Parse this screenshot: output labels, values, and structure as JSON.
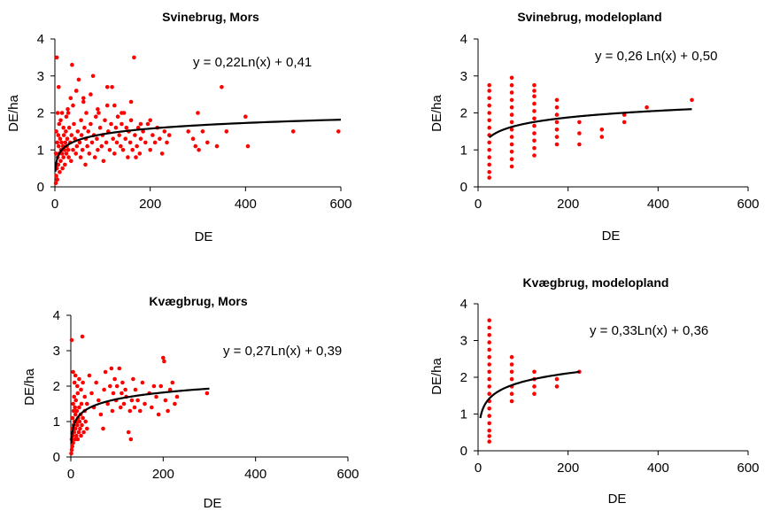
{
  "chart_data": [
    {
      "type": "scatter",
      "title": "Svinebrug, Mors",
      "xlabel": "DE",
      "ylabel": "DE/ha",
      "xlim": [
        0,
        600
      ],
      "ylim": [
        0,
        4
      ],
      "xticks": [
        "0",
        "200",
        "400",
        "600"
      ],
      "yticks": [
        "0",
        "1",
        "2",
        "3",
        "4"
      ],
      "equation": "y = 0,22Ln(x) + 0,41",
      "trend": {
        "a": 0.22,
        "b": 0.41,
        "xmin": 1,
        "xmax": 600
      },
      "point_color": "#ff0000",
      "points": [
        [
          2,
          0.1
        ],
        [
          3,
          0.3
        ],
        [
          4,
          0.5
        ],
        [
          5,
          0.2
        ],
        [
          6,
          0.8
        ],
        [
          7,
          0.6
        ],
        [
          8,
          1.1
        ],
        [
          9,
          0.9
        ],
        [
          10,
          0.4
        ],
        [
          11,
          1.3
        ],
        [
          12,
          0.7
        ],
        [
          13,
          1.0
        ],
        [
          14,
          1.2
        ],
        [
          15,
          0.9
        ],
        [
          16,
          0.5
        ],
        [
          17,
          1.1
        ],
        [
          18,
          0.8
        ],
        [
          19,
          1.4
        ],
        [
          20,
          1.0
        ],
        [
          21,
          0.6
        ],
        [
          22,
          1.2
        ],
        [
          23,
          1.5
        ],
        [
          24,
          0.9
        ],
        [
          25,
          1.1
        ],
        [
          26,
          1.3
        ],
        [
          27,
          2.1
        ],
        [
          28,
          1.0
        ],
        [
          29,
          0.8
        ],
        [
          30,
          1.6
        ],
        [
          32,
          1.2
        ],
        [
          34,
          0.7
        ],
        [
          35,
          1.4
        ],
        [
          36,
          3.3
        ],
        [
          38,
          1.0
        ],
        [
          40,
          1.7
        ],
        [
          42,
          1.3
        ],
        [
          44,
          0.9
        ],
        [
          45,
          2.6
        ],
        [
          46,
          1.1
        ],
        [
          48,
          1.5
        ],
        [
          50,
          2.9
        ],
        [
          52,
          1.2
        ],
        [
          54,
          0.8
        ],
        [
          55,
          1.8
        ],
        [
          56,
          1.4
        ],
        [
          58,
          1.0
        ],
        [
          60,
          2.3
        ],
        [
          62,
          1.6
        ],
        [
          64,
          0.6
        ],
        [
          65,
          1.3
        ],
        [
          66,
          2.0
        ],
        [
          68,
          1.1
        ],
        [
          70,
          1.5
        ],
        [
          72,
          0.9
        ],
        [
          75,
          1.7
        ],
        [
          78,
          1.2
        ],
        [
          80,
          3.0
        ],
        [
          82,
          1.4
        ],
        [
          84,
          0.8
        ],
        [
          86,
          1.9
        ],
        [
          88,
          1.3
        ],
        [
          90,
          1.0
        ],
        [
          92,
          2.0
        ],
        [
          95,
          1.6
        ],
        [
          98,
          1.1
        ],
        [
          100,
          1.4
        ],
        [
          102,
          0.7
        ],
        [
          105,
          1.8
        ],
        [
          108,
          1.2
        ],
        [
          110,
          2.2
        ],
        [
          112,
          1.5
        ],
        [
          115,
          1.0
        ],
        [
          118,
          1.7
        ],
        [
          120,
          2.7
        ],
        [
          122,
          1.3
        ],
        [
          125,
          0.9
        ],
        [
          128,
          1.6
        ],
        [
          130,
          1.2
        ],
        [
          132,
          1.9
        ],
        [
          135,
          1.4
        ],
        [
          138,
          1.1
        ],
        [
          140,
          1.7
        ],
        [
          143,
          1.0
        ],
        [
          145,
          2.0
        ],
        [
          148,
          1.3
        ],
        [
          150,
          1.6
        ],
        [
          153,
          0.8
        ],
        [
          155,
          1.5
        ],
        [
          158,
          1.2
        ],
        [
          160,
          1.8
        ],
        [
          163,
          1.0
        ],
        [
          166,
          3.5
        ],
        [
          168,
          1.4
        ],
        [
          170,
          0.8
        ],
        [
          172,
          1.1
        ],
        [
          175,
          1.6
        ],
        [
          178,
          0.9
        ],
        [
          180,
          1.3
        ],
        [
          185,
          1.5
        ],
        [
          190,
          1.2
        ],
        [
          195,
          1.7
        ],
        [
          200,
          1.0
        ],
        [
          205,
          1.4
        ],
        [
          210,
          1.2
        ],
        [
          215,
          1.6
        ],
        [
          220,
          1.3
        ],
        [
          225,
          0.9
        ],
        [
          230,
          1.5
        ],
        [
          235,
          1.2
        ],
        [
          240,
          1.4
        ],
        [
          280,
          1.5
        ],
        [
          290,
          1.3
        ],
        [
          295,
          1.1
        ],
        [
          300,
          2.0
        ],
        [
          302,
          1.0
        ],
        [
          310,
          1.5
        ],
        [
          320,
          1.2
        ],
        [
          340,
          1.1
        ],
        [
          350,
          2.7
        ],
        [
          360,
          1.5
        ],
        [
          400,
          1.9
        ],
        [
          405,
          1.1
        ],
        [
          500,
          1.5
        ],
        [
          595,
          1.5
        ],
        [
          4,
          3.5
        ],
        [
          8,
          2.7
        ],
        [
          15,
          2.0
        ],
        [
          24,
          1.9
        ],
        [
          33,
          2.4
        ],
        [
          45,
          2.6
        ],
        [
          60,
          2.4
        ],
        [
          75,
          2.5
        ],
        [
          90,
          2.1
        ],
        [
          110,
          2.7
        ],
        [
          125,
          2.2
        ],
        [
          140,
          2.0
        ],
        [
          160,
          2.3
        ],
        [
          180,
          1.7
        ],
        [
          200,
          1.8
        ],
        [
          12,
          1.8
        ],
        [
          18,
          1.6
        ],
        [
          28,
          2.0
        ],
        [
          38,
          2.2
        ],
        [
          6,
          2.0
        ],
        [
          3,
          1.5
        ],
        [
          2,
          0.9
        ],
        [
          5,
          1.2
        ],
        [
          7,
          1.4
        ],
        [
          9,
          1.7
        ]
      ]
    },
    {
      "type": "scatter",
      "title": "Svinebrug, modelopland",
      "xlabel": "DE",
      "ylabel": "DE/ha",
      "xlim": [
        0,
        600
      ],
      "ylim": [
        0,
        4
      ],
      "xticks": [
        "0",
        "200",
        "400",
        "600"
      ],
      "yticks": [
        "0",
        "1",
        "2",
        "3",
        "4"
      ],
      "equation": "y = 0,26 Ln(x) + 0,50",
      "trend": {
        "a": 0.26,
        "b": 0.5,
        "xmin": 25,
        "xmax": 475
      },
      "point_color": "#ff0000",
      "points": [
        [
          25,
          0.25
        ],
        [
          25,
          0.4
        ],
        [
          25,
          0.6
        ],
        [
          25,
          0.8
        ],
        [
          25,
          1.0
        ],
        [
          25,
          1.2
        ],
        [
          25,
          1.4
        ],
        [
          25,
          1.6
        ],
        [
          25,
          1.8
        ],
        [
          25,
          2.0
        ],
        [
          25,
          2.2
        ],
        [
          25,
          2.4
        ],
        [
          25,
          2.6
        ],
        [
          25,
          2.75
        ],
        [
          75,
          0.55
        ],
        [
          75,
          0.75
        ],
        [
          75,
          0.95
        ],
        [
          75,
          1.15
        ],
        [
          75,
          1.35
        ],
        [
          75,
          1.55
        ],
        [
          75,
          1.75
        ],
        [
          75,
          1.95
        ],
        [
          75,
          2.15
        ],
        [
          75,
          2.35
        ],
        [
          75,
          2.55
        ],
        [
          75,
          2.75
        ],
        [
          75,
          2.95
        ],
        [
          125,
          0.85
        ],
        [
          125,
          1.05
        ],
        [
          125,
          1.25
        ],
        [
          125,
          1.45
        ],
        [
          125,
          1.65
        ],
        [
          125,
          1.85
        ],
        [
          125,
          2.05
        ],
        [
          125,
          2.25
        ],
        [
          125,
          2.45
        ],
        [
          125,
          2.6
        ],
        [
          125,
          2.75
        ],
        [
          175,
          1.15
        ],
        [
          175,
          1.35
        ],
        [
          175,
          1.55
        ],
        [
          175,
          1.75
        ],
        [
          175,
          1.95
        ],
        [
          175,
          2.15
        ],
        [
          175,
          2.35
        ],
        [
          225,
          1.15
        ],
        [
          225,
          1.45
        ],
        [
          225,
          1.75
        ],
        [
          275,
          1.35
        ],
        [
          275,
          1.55
        ],
        [
          325,
          1.75
        ],
        [
          325,
          1.95
        ],
        [
          375,
          2.15
        ],
        [
          475,
          2.35
        ]
      ]
    },
    {
      "type": "scatter",
      "title": "Kvægbrug, Mors",
      "xlabel": "DE",
      "ylabel": "DE/ha",
      "xlim": [
        0,
        600
      ],
      "ylim": [
        0,
        4
      ],
      "xticks": [
        "0",
        "200",
        "400",
        "600"
      ],
      "yticks": [
        "0",
        "1",
        "2",
        "3",
        "4"
      ],
      "equation": "y = 0,27Ln(x) + 0,39",
      "trend": {
        "a": 0.27,
        "b": 0.39,
        "xmin": 1,
        "xmax": 300
      },
      "point_color": "#ff0000",
      "points": [
        [
          1,
          0.1
        ],
        [
          2,
          0.2
        ],
        [
          2,
          0.5
        ],
        [
          3,
          0.3
        ],
        [
          3,
          0.8
        ],
        [
          4,
          0.6
        ],
        [
          4,
          1.1
        ],
        [
          5,
          0.4
        ],
        [
          5,
          1.5
        ],
        [
          6,
          0.9
        ],
        [
          6,
          1.3
        ],
        [
          7,
          0.7
        ],
        [
          7,
          1.7
        ],
        [
          8,
          1.0
        ],
        [
          8,
          2.1
        ],
        [
          9,
          0.5
        ],
        [
          9,
          1.4
        ],
        [
          10,
          1.2
        ],
        [
          10,
          0.8
        ],
        [
          11,
          1.6
        ],
        [
          12,
          1.0
        ],
        [
          12,
          0.6
        ],
        [
          13,
          1.3
        ],
        [
          14,
          0.9
        ],
        [
          15,
          1.8
        ],
        [
          15,
          0.5
        ],
        [
          16,
          1.1
        ],
        [
          17,
          0.7
        ],
        [
          18,
          1.4
        ],
        [
          19,
          1.0
        ],
        [
          20,
          0.8
        ],
        [
          21,
          1.2
        ],
        [
          22,
          0.6
        ],
        [
          23,
          1.5
        ],
        [
          24,
          0.9
        ],
        [
          25,
          3.4
        ],
        [
          26,
          1.1
        ],
        [
          28,
          0.7
        ],
        [
          30,
          1.3
        ],
        [
          32,
          1.0
        ],
        [
          2,
          3.3
        ],
        [
          5,
          2.4
        ],
        [
          10,
          2.3
        ],
        [
          14,
          2.0
        ],
        [
          18,
          2.2
        ],
        [
          22,
          1.9
        ],
        [
          26,
          2.1
        ],
        [
          30,
          1.7
        ],
        [
          35,
          1.5
        ],
        [
          40,
          2.3
        ],
        [
          45,
          1.8
        ],
        [
          50,
          1.4
        ],
        [
          55,
          2.1
        ],
        [
          60,
          1.6
        ],
        [
          65,
          1.2
        ],
        [
          70,
          0.8
        ],
        [
          72,
          1.9
        ],
        [
          75,
          2.4
        ],
        [
          80,
          1.5
        ],
        [
          85,
          2.0
        ],
        [
          88,
          2.5
        ],
        [
          90,
          1.3
        ],
        [
          92,
          1.8
        ],
        [
          95,
          2.2
        ],
        [
          98,
          1.6
        ],
        [
          100,
          2.0
        ],
        [
          105,
          2.5
        ],
        [
          108,
          1.4
        ],
        [
          110,
          1.8
        ],
        [
          112,
          2.1
        ],
        [
          115,
          1.5
        ],
        [
          118,
          1.9
        ],
        [
          120,
          1.7
        ],
        [
          125,
          0.7
        ],
        [
          128,
          1.3
        ],
        [
          130,
          0.5
        ],
        [
          132,
          1.6
        ],
        [
          135,
          2.2
        ],
        [
          138,
          1.4
        ],
        [
          140,
          1.9
        ],
        [
          145,
          1.6
        ],
        [
          150,
          1.3
        ],
        [
          155,
          2.1
        ],
        [
          160,
          1.5
        ],
        [
          170,
          1.8
        ],
        [
          175,
          1.4
        ],
        [
          180,
          2.0
        ],
        [
          185,
          1.7
        ],
        [
          190,
          1.2
        ],
        [
          195,
          2.0
        ],
        [
          200,
          2.8
        ],
        [
          202,
          2.7
        ],
        [
          205,
          1.6
        ],
        [
          210,
          1.3
        ],
        [
          215,
          1.9
        ],
        [
          220,
          2.1
        ],
        [
          225,
          1.5
        ],
        [
          230,
          1.7
        ],
        [
          295,
          1.8
        ],
        [
          35,
          0.8
        ]
      ]
    },
    {
      "type": "scatter",
      "title": "Kvægbrug, modelopland",
      "xlabel": "DE",
      "ylabel": "DE/ha",
      "xlim": [
        0,
        600
      ],
      "ylim": [
        0,
        4
      ],
      "xticks": [
        "0",
        "200",
        "400",
        "600"
      ],
      "yticks": [
        "0",
        "1",
        "2",
        "3",
        "4"
      ],
      "equation": "y = 0,33Ln(x) + 0,36",
      "trend": {
        "a": 0.33,
        "b": 0.36,
        "xmin": 5,
        "xmax": 225
      },
      "point_color": "#ff0000",
      "points": [
        [
          25,
          0.25
        ],
        [
          25,
          0.4
        ],
        [
          25,
          0.55
        ],
        [
          25,
          0.75
        ],
        [
          25,
          0.95
        ],
        [
          25,
          1.15
        ],
        [
          25,
          1.35
        ],
        [
          25,
          1.55
        ],
        [
          25,
          1.75
        ],
        [
          25,
          1.95
        ],
        [
          25,
          2.15
        ],
        [
          25,
          2.35
        ],
        [
          25,
          2.55
        ],
        [
          25,
          2.75
        ],
        [
          25,
          2.95
        ],
        [
          25,
          3.15
        ],
        [
          25,
          3.35
        ],
        [
          25,
          3.55
        ],
        [
          75,
          1.35
        ],
        [
          75,
          1.55
        ],
        [
          75,
          1.75
        ],
        [
          75,
          1.95
        ],
        [
          75,
          2.15
        ],
        [
          75,
          2.35
        ],
        [
          75,
          2.55
        ],
        [
          125,
          1.55
        ],
        [
          125,
          1.75
        ],
        [
          125,
          1.95
        ],
        [
          125,
          2.15
        ],
        [
          175,
          1.75
        ],
        [
          175,
          1.95
        ],
        [
          225,
          2.15
        ]
      ]
    }
  ]
}
